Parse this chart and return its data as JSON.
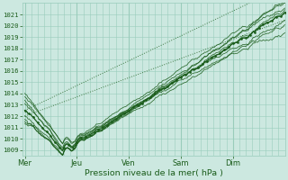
{
  "title": "Pression niveau de la mer( hPa )",
  "ylabel_values": [
    1009,
    1010,
    1011,
    1012,
    1013,
    1014,
    1015,
    1016,
    1017,
    1018,
    1019,
    1020,
    1021
  ],
  "ylim": [
    1008.5,
    1022.0
  ],
  "day_labels": [
    "Mer",
    "Jeu",
    "Ven",
    "Sam",
    "Dim"
  ],
  "day_positions": [
    0,
    48,
    96,
    144,
    192
  ],
  "xlim": [
    -2,
    240
  ],
  "bg_color": "#cce8e0",
  "grid_color": "#99ccbb",
  "line_color": "#1a5c1a",
  "axis_label_color": "#1a5c1a",
  "tick_color": "#1a5c1a"
}
